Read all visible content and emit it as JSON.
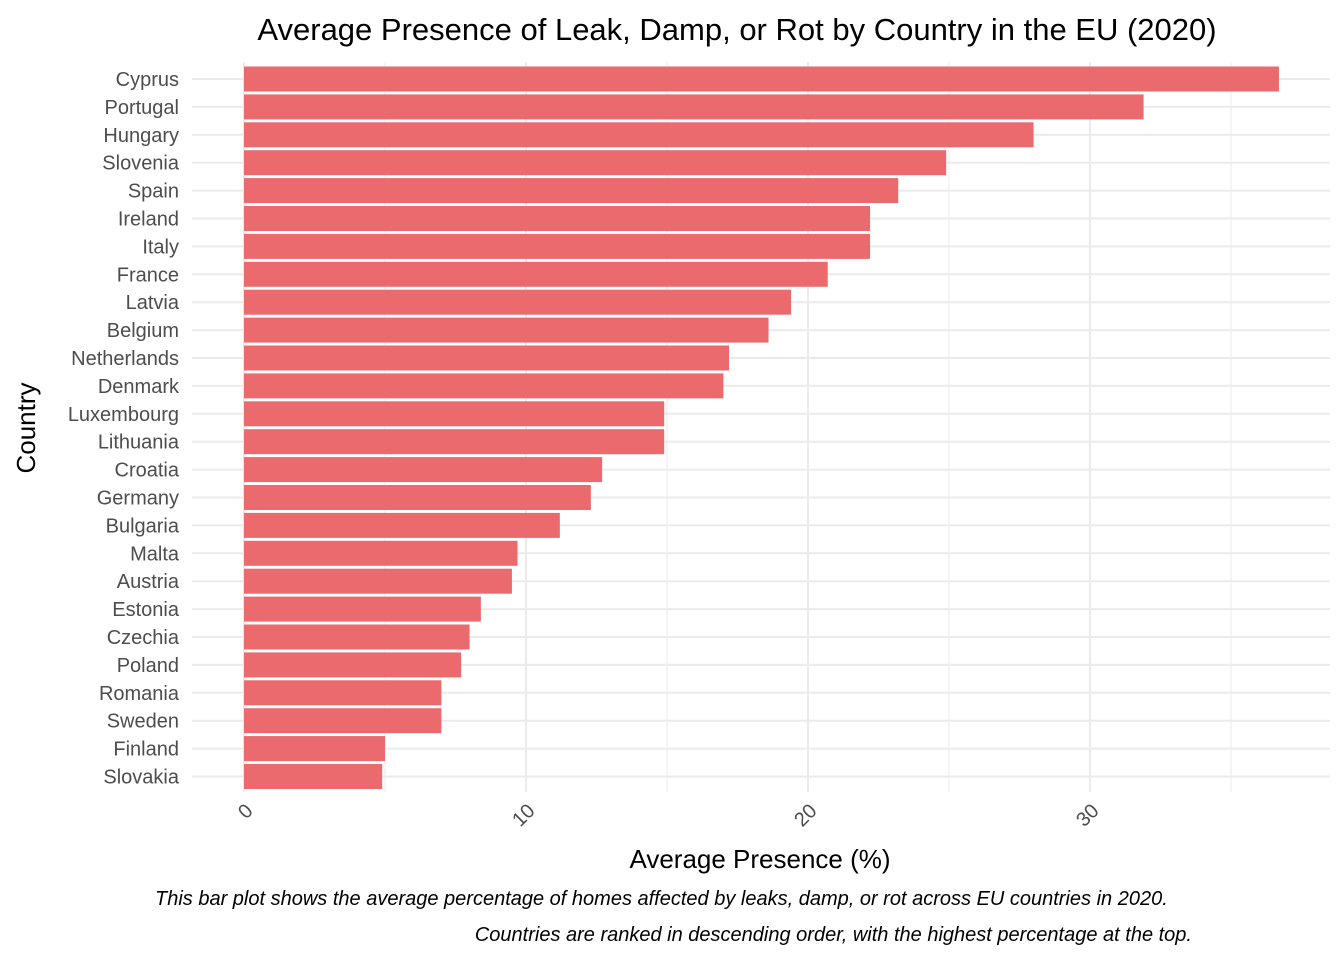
{
  "chart_data": {
    "type": "bar",
    "orientation": "horizontal",
    "title": "Average Presence of Leak, Damp, or Rot by Country in the EU (2020)",
    "xlabel": "Average Presence (%)",
    "ylabel": "Country",
    "caption": [
      "This bar plot shows the average percentage of homes affected by leaks, damp, or rot across EU countries in 2020.",
      "Countries are ranked in descending order, with the highest percentage at the top."
    ],
    "categories": [
      "Cyprus",
      "Portugal",
      "Hungary",
      "Slovenia",
      "Spain",
      "Ireland",
      "Italy",
      "France",
      "Latvia",
      "Belgium",
      "Netherlands",
      "Denmark",
      "Luxembourg",
      "Lithuania",
      "Croatia",
      "Germany",
      "Bulgaria",
      "Malta",
      "Austria",
      "Estonia",
      "Czechia",
      "Poland",
      "Romania",
      "Sweden",
      "Finland",
      "Slovakia"
    ],
    "values": [
      36.7,
      31.9,
      28.0,
      24.9,
      23.2,
      22.2,
      22.2,
      20.7,
      19.4,
      18.6,
      17.2,
      17.0,
      14.9,
      14.9,
      12.7,
      12.3,
      11.2,
      9.7,
      9.5,
      8.4,
      8.0,
      7.7,
      7.0,
      7.0,
      5.0,
      4.9
    ],
    "xticks": [
      0,
      10,
      20,
      30
    ],
    "xlim": [
      -1.8,
      38.5
    ],
    "grid": true,
    "bar_color": "#eb6a6e"
  }
}
